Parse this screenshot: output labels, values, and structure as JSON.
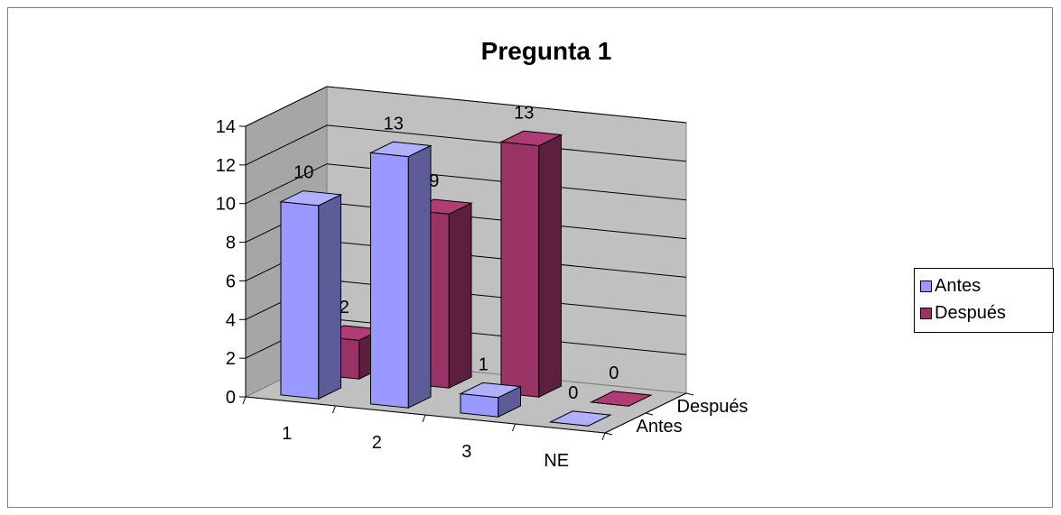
{
  "chart_data": {
    "type": "bar",
    "subtype": "3d-column",
    "title": "Pregunta 1",
    "categories": [
      "1",
      "2",
      "3",
      "NE"
    ],
    "series": [
      {
        "name": "Antes",
        "values": [
          10,
          13,
          1,
          0
        ],
        "color": "#9999ff"
      },
      {
        "name": "Después",
        "values": [
          2,
          9,
          13,
          0
        ],
        "color": "#993366"
      }
    ],
    "depth_labels": [
      "Después",
      "Antes"
    ],
    "yticks": [
      "0",
      "2",
      "4",
      "6",
      "8",
      "10",
      "12",
      "14"
    ],
    "ylim": [
      0,
      14
    ],
    "grid": true,
    "legend": "right",
    "wall_color": "#c0c0c0",
    "floor_color": "#c0c0c0"
  }
}
